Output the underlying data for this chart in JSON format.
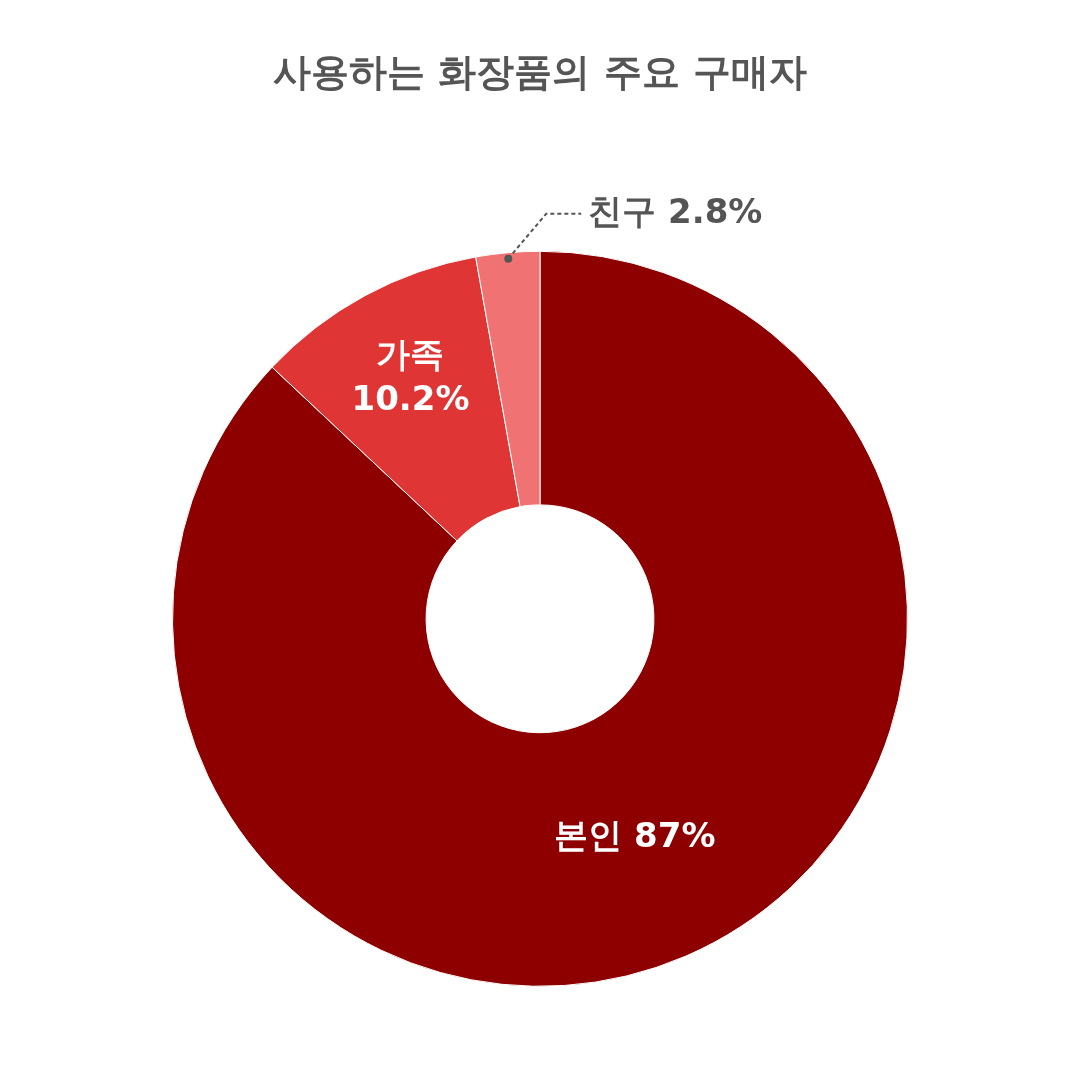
{
  "chart_data": {
    "type": "donut",
    "title": "사용하는 화장품의 주요 구매자",
    "categories": [
      "본인",
      "가족",
      "친구"
    ],
    "values": [
      87,
      10.2,
      2.8
    ],
    "value_labels": [
      "87%",
      "10.2%",
      "2.8%"
    ],
    "colors": [
      "#8e0000",
      "#e03535",
      "#f07272"
    ],
    "legend": false
  }
}
